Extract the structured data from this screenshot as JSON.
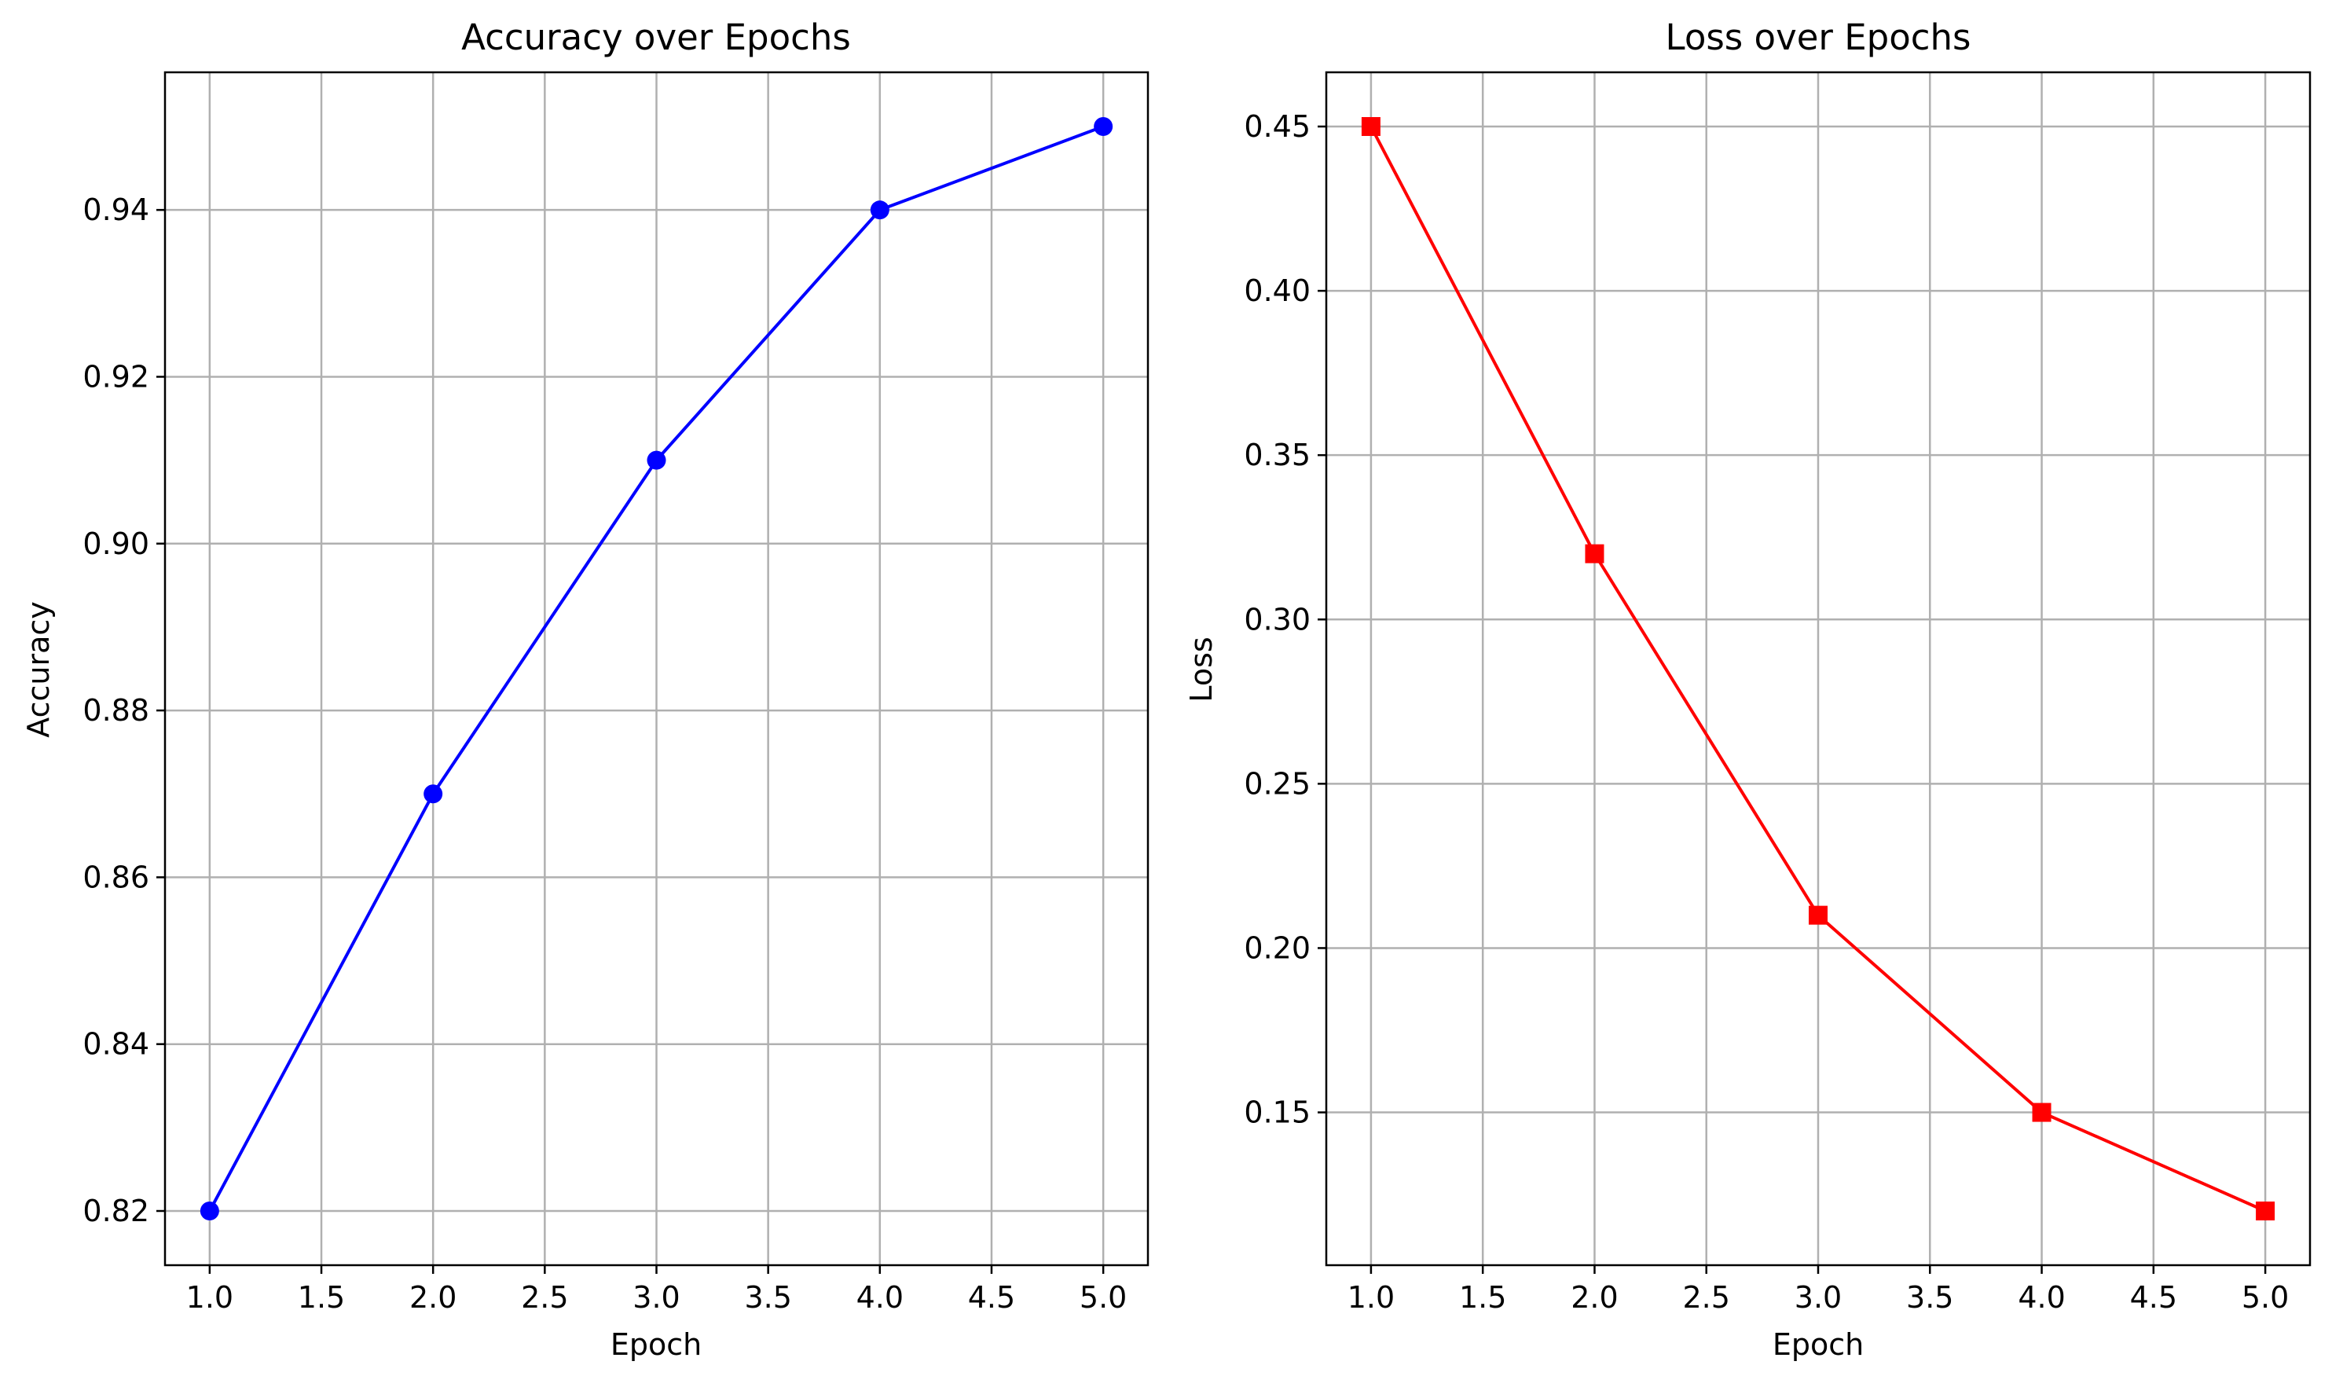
{
  "chart_data": [
    {
      "type": "line",
      "title": "Accuracy over Epochs",
      "xlabel": "Epoch",
      "ylabel": "Accuracy",
      "x": [
        1,
        2,
        3,
        4,
        5
      ],
      "series": [
        {
          "values": [
            0.82,
            0.87,
            0.91,
            0.94,
            0.95
          ],
          "color": "#0000ff",
          "marker": "circle"
        }
      ],
      "xlim": [
        0.8,
        5.2
      ],
      "ylim": [
        0.8135,
        0.9565
      ],
      "xticks": [
        "1.0",
        "1.5",
        "2.0",
        "2.5",
        "3.0",
        "3.5",
        "4.0",
        "4.5",
        "5.0"
      ],
      "yticks": [
        "0.82",
        "0.84",
        "0.86",
        "0.88",
        "0.90",
        "0.92",
        "0.94"
      ],
      "grid": true
    },
    {
      "type": "line",
      "title": "Loss over Epochs",
      "xlabel": "Epoch",
      "ylabel": "Loss",
      "x": [
        1,
        2,
        3,
        4,
        5
      ],
      "series": [
        {
          "values": [
            0.45,
            0.32,
            0.21,
            0.15,
            0.12
          ],
          "color": "#ff0000",
          "marker": "square"
        }
      ],
      "xlim": [
        0.8,
        5.2
      ],
      "ylim": [
        0.1035,
        0.4665
      ],
      "xticks": [
        "1.0",
        "1.5",
        "2.0",
        "2.5",
        "3.0",
        "3.5",
        "4.0",
        "4.5",
        "5.0"
      ],
      "yticks": [
        "0.15",
        "0.20",
        "0.25",
        "0.30",
        "0.35",
        "0.40",
        "0.45"
      ],
      "grid": true
    }
  ]
}
